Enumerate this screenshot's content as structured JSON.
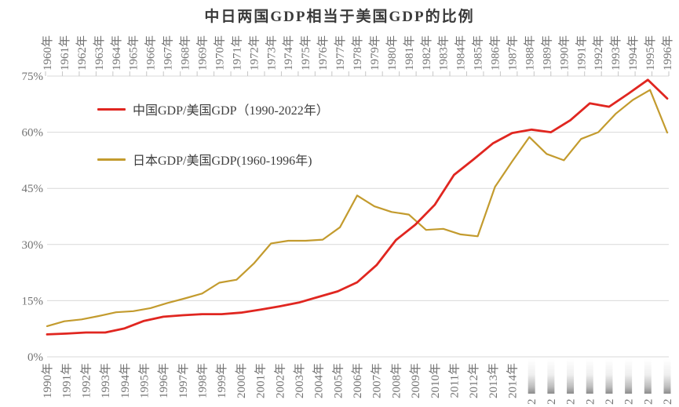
{
  "chart_data": {
    "type": "line",
    "title": "中日两国GDP相当于美国GDP的比例",
    "background_color": "#ffffff",
    "grid_color": "#d9d9d9",
    "tick_color": "#c6c6c6",
    "axis_label_color": "#737373",
    "ytick_label_color": "#595959",
    "grid_on": true,
    "legend_position": "inside-top-left",
    "ylim": [
      0,
      75
    ],
    "ytick_values": [
      0,
      15,
      30,
      45,
      60,
      75
    ],
    "ytick_labels": [
      "0%",
      "15%",
      "30%",
      "45%",
      "60%",
      "75%"
    ],
    "series": [
      {
        "name": "中国GDP/美国GDP（1990-2022年）",
        "color": "#e02620",
        "x_axis": "bottom",
        "years": [
          1990,
          1991,
          1992,
          1993,
          1994,
          1995,
          1996,
          1997,
          1998,
          1999,
          2000,
          2001,
          2002,
          2003,
          2004,
          2005,
          2006,
          2007,
          2008,
          2009,
          2010,
          2011,
          2012,
          2013,
          2014,
          2015,
          2016,
          2017,
          2018,
          2019,
          2020,
          2021,
          2022
        ],
        "values": [
          6.0,
          6.2,
          6.5,
          6.5,
          7.6,
          9.6,
          10.7,
          11.1,
          11.4,
          11.4,
          11.8,
          12.6,
          13.5,
          14.5,
          16.0,
          17.5,
          19.9,
          24.5,
          31.2,
          35.3,
          40.6,
          48.6,
          52.7,
          57.0,
          59.8,
          60.7,
          60.0,
          63.2,
          67.7,
          66.8,
          70.3,
          74.0,
          69.0
        ]
      },
      {
        "name": "日本GDP/美国GDP(1960-1996年)",
        "color": "#c39b2e",
        "x_axis": "top",
        "years": [
          1960,
          1961,
          1962,
          1963,
          1964,
          1965,
          1966,
          1967,
          1968,
          1969,
          1970,
          1971,
          1972,
          1973,
          1974,
          1975,
          1976,
          1977,
          1978,
          1979,
          1980,
          1981,
          1982,
          1983,
          1984,
          1985,
          1986,
          1987,
          1988,
          1989,
          1990,
          1991,
          1992,
          1993,
          1994,
          1995,
          1996
        ],
        "values": [
          8.2,
          9.5,
          10.0,
          10.9,
          11.9,
          12.2,
          13.0,
          14.4,
          15.6,
          16.9,
          19.8,
          20.6,
          24.9,
          30.3,
          31.0,
          31.0,
          31.3,
          34.6,
          43.1,
          40.2,
          38.7,
          38.0,
          33.9,
          34.2,
          32.7,
          32.2,
          45.4,
          52.2,
          58.7,
          54.2,
          52.5,
          58.2,
          60.0,
          64.9,
          68.6,
          71.3,
          59.9
        ]
      }
    ],
    "top_axis": {
      "labels": [
        "1960年",
        "1961年",
        "1962年",
        "1963年",
        "1964年",
        "1965年",
        "1966年",
        "1967年",
        "1968年",
        "1969年",
        "1970年",
        "1971年",
        "1972年",
        "1973年",
        "1974年",
        "1975年",
        "1976年",
        "1977年",
        "1978年",
        "1979年",
        "1980年",
        "1981年",
        "1982年",
        "1983年",
        "1984年",
        "1985年",
        "1986年",
        "1987年",
        "1988年",
        "1989年",
        "1990年",
        "1991年",
        "1992年",
        "1993年",
        "1994年",
        "1995年",
        "1996年"
      ]
    },
    "bottom_axis": {
      "labels": [
        "1990年",
        "1991年",
        "1992年",
        "1993年",
        "1994年",
        "1995年",
        "1996年",
        "1997年",
        "1998年",
        "1999年",
        "2000年",
        "2001年",
        "2002年",
        "2003年",
        "2004年",
        "2005年",
        "2006年",
        "2007年",
        "2008年",
        "2009年",
        "2010年",
        "2011年",
        "2012年",
        "2013年",
        "2014年"
      ],
      "obscured_labels": [
        "2",
        "2",
        "2",
        "2",
        "2",
        "2",
        "2",
        "2"
      ]
    }
  }
}
